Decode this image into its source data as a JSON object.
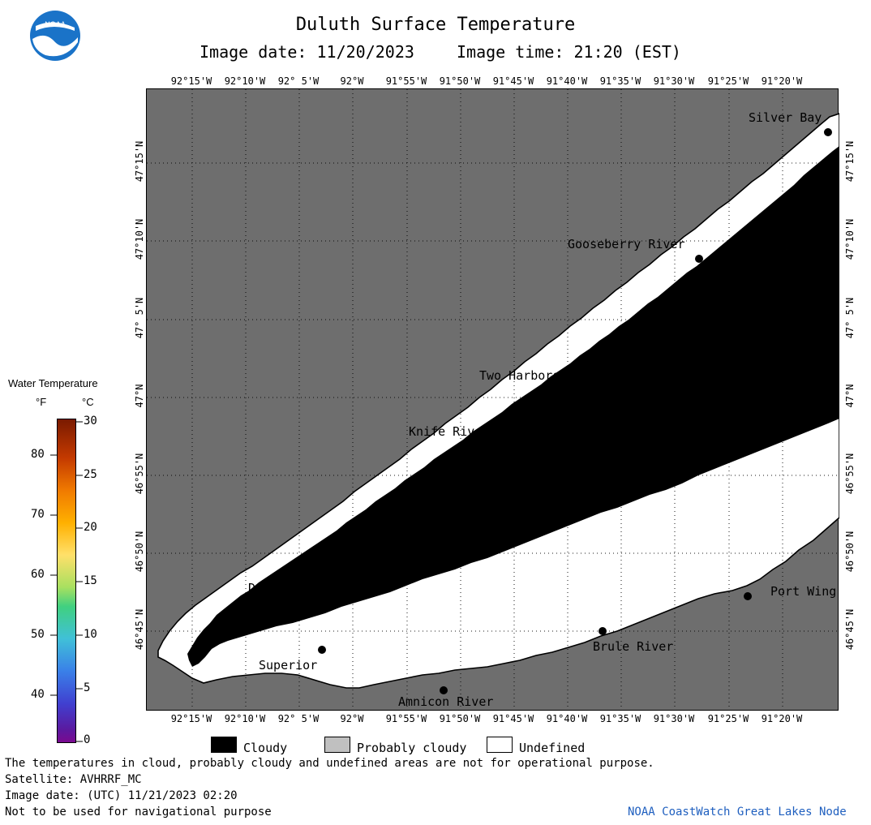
{
  "header": {
    "title": "Duluth Surface Temperature",
    "image_date": "Image date: 11/20/2023",
    "image_time": "Image time: 21:20 (EST)",
    "logo_text": "NOAA"
  },
  "lon_labels": [
    "92°15'W",
    "92°10'W",
    "92° 5'W",
    "92°W",
    "91°55'W",
    "91°50'W",
    "91°45'W",
    "91°40'W",
    "91°35'W",
    "91°30'W",
    "91°25'W",
    "91°20'W"
  ],
  "lat_labels": [
    "47°15'N",
    "47°10'N",
    "47° 5'N",
    "47°N",
    "46°55'N",
    "46°50'N",
    "46°45'N"
  ],
  "places": {
    "silver_bay": "Silver Bay",
    "gooseberry": "Gooseberry River",
    "two_harbors": "Two Harbors",
    "knife_river": "Knife River",
    "duluth": "Duluth",
    "superior": "Superior",
    "amnicon": "Amnicon River",
    "brule": "Brule River",
    "port_wing": "Port Wing"
  },
  "colorbar": {
    "title": "Water Temperature",
    "unit_f": "°F",
    "unit_c": "°C",
    "f_ticks": [
      "80",
      "70",
      "60",
      "50",
      "40"
    ],
    "c_ticks": [
      "30",
      "25",
      "20",
      "15",
      "10",
      "5",
      "0"
    ]
  },
  "legend": {
    "cloudy": "Cloudy",
    "probably_cloudy": "Probably cloudy",
    "undefined": "Undefined"
  },
  "footer": {
    "line1": "The temperatures in cloud, probably cloudy and undefined areas are not for operational purpose.",
    "line2": "Satellite: AVHRRF_MC",
    "line3": "Image date: (UTC) 11/21/2023  02:20",
    "line4": "Not to be used for navigational purpose",
    "credit": "NOAA CoastWatch Great Lakes Node"
  },
  "colors": {
    "land": "#6e6e6e",
    "cloudy": "#000000",
    "probably_cloudy": "#c0c0c0",
    "undefined": "#ffffff",
    "credit": "#1f5fbf"
  }
}
